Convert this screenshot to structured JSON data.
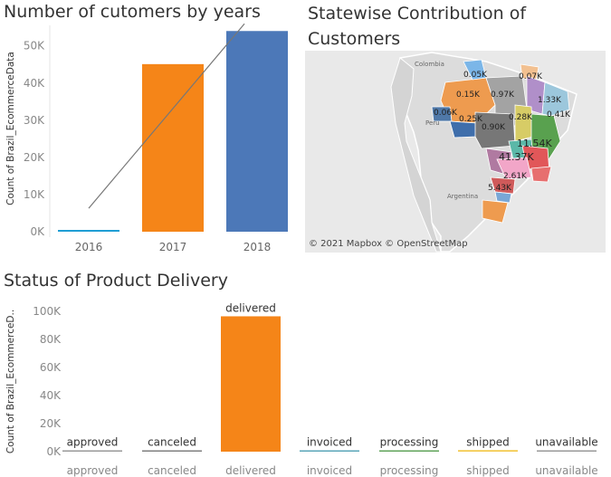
{
  "chart1": {
    "title": "Number of cutomers by years",
    "ylabel": "Count of Brazil_EcommerceData",
    "ticks": [
      "0K",
      "10K",
      "20K",
      "30K",
      "40K",
      "50K"
    ],
    "colors": {
      "2016": "#1f9ed4",
      "2017": "#f58518",
      "2018": "#4c78b8",
      "trend": "#777777"
    },
    "chart_data": {
      "type": "bar",
      "categories": [
        "2016",
        "2017",
        "2018"
      ],
      "values": [
        329,
        45101,
        54011
      ],
      "ylim": [
        0,
        57000
      ],
      "trend_line": true
    }
  },
  "map": {
    "title": "Statewise Contribution of Customers",
    "attribution": "© 2021 Mapbox © OpenStreetMap",
    "place_labels": [
      "Colombia",
      "Peru",
      "Argentina"
    ],
    "state_values": [
      "0.05K",
      "0.07K",
      "0.15K",
      "0.97K",
      "1.33K",
      "0.06K",
      "0.25K",
      "0.90K",
      "0.28K",
      "0.41K",
      "11.54K",
      "41.37K",
      "2.61K",
      "5.43K"
    ]
  },
  "chart2": {
    "title": "Status of Product Delivery",
    "ylabel": "Count of Brazil_EcommerceD..",
    "ticks": [
      "0K",
      "20K",
      "40K",
      "60K",
      "80K",
      "100K"
    ],
    "colors": {
      "delivered": "#f58518",
      "shipped": "#f3c84a",
      "canceled": "#7f7f7f",
      "invoiced": "#5aa6b8",
      "processing": "#5fa35a",
      "unavailable": "#999999",
      "approved": "#999999"
    },
    "chart_data": {
      "type": "bar",
      "categories": [
        "approved",
        "canceled",
        "delivered",
        "invoiced",
        "processing",
        "shipped",
        "unavailable"
      ],
      "values": [
        2,
        625,
        96478,
        314,
        301,
        1107,
        609
      ],
      "ylim": [
        0,
        105000
      ]
    }
  }
}
